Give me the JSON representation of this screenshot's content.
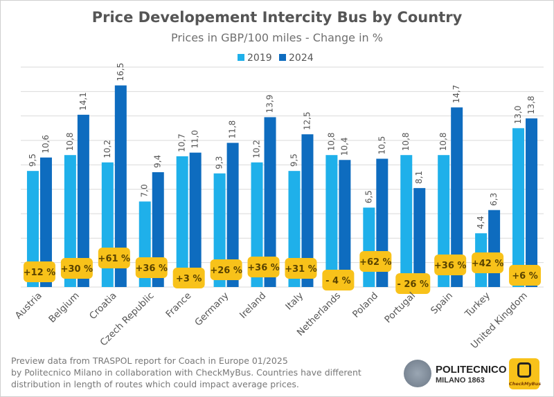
{
  "chart_data": {
    "type": "bar",
    "title": "Price Developement Intercity Bus by Country",
    "subtitle": "Prices in GBP/100 miles - Change in %",
    "categories": [
      "Austria",
      "Belgium",
      "Croatia",
      "Czech Republic",
      "France",
      "Germany",
      "Ireland",
      "Italy",
      "Netherlands",
      "Poland",
      "Portugal",
      "Spain",
      "Turkey",
      "United Kingdom"
    ],
    "series": [
      {
        "name": "2019",
        "color": "#1fb0ea",
        "values": [
          9.5,
          10.8,
          10.2,
          7.0,
          10.7,
          9.3,
          10.2,
          9.5,
          10.8,
          6.5,
          10.8,
          10.8,
          4.4,
          13.0
        ],
        "labels": [
          "9,5",
          "10,8",
          "10,2",
          "7,0",
          "10,7",
          "9,3",
          "10,2",
          "9,5",
          "10,8",
          "6,5",
          "10,8",
          "10,8",
          "4,4",
          "13,0"
        ]
      },
      {
        "name": "2024",
        "color": "#0e6cbf",
        "values": [
          10.6,
          14.1,
          16.5,
          9.4,
          11.0,
          11.8,
          13.9,
          12.5,
          10.4,
          10.5,
          8.1,
          14.7,
          6.3,
          13.8
        ],
        "labels": [
          "10,6",
          "14,1",
          "16,5",
          "9,4",
          "11,0",
          "11,8",
          "13,9",
          "12,5",
          "10,4",
          "10,5",
          "8,1",
          "14,7",
          "6,3",
          "13,8"
        ]
      }
    ],
    "change_labels": [
      "+12 %",
      "+30 %",
      "+61 %",
      "+36 %",
      "+3 %",
      "+26 %",
      "+36 %",
      "+31 %",
      "- 4 %",
      "+62 %",
      "- 26 %",
      "+36 %",
      "+42 %",
      "+6 %"
    ],
    "badge_color": "#f8c21a",
    "ylim": [
      0,
      18
    ],
    "grid": true,
    "legend_placement": "top-center",
    "xlabel": "",
    "ylabel": ""
  },
  "footer": {
    "lines": [
      "Preview data from TRASPOL report for Coach in Europe 01/2025",
      "by Politecnico Milano in collaboration with CheckMyBus. Countries have different",
      "distribution in length of routes which could impact average prices."
    ]
  },
  "logos": {
    "politecnico_name": "POLITECNICO",
    "politecnico_sub": "MILANO 1863",
    "checkmybus": "CheckMyBus"
  }
}
